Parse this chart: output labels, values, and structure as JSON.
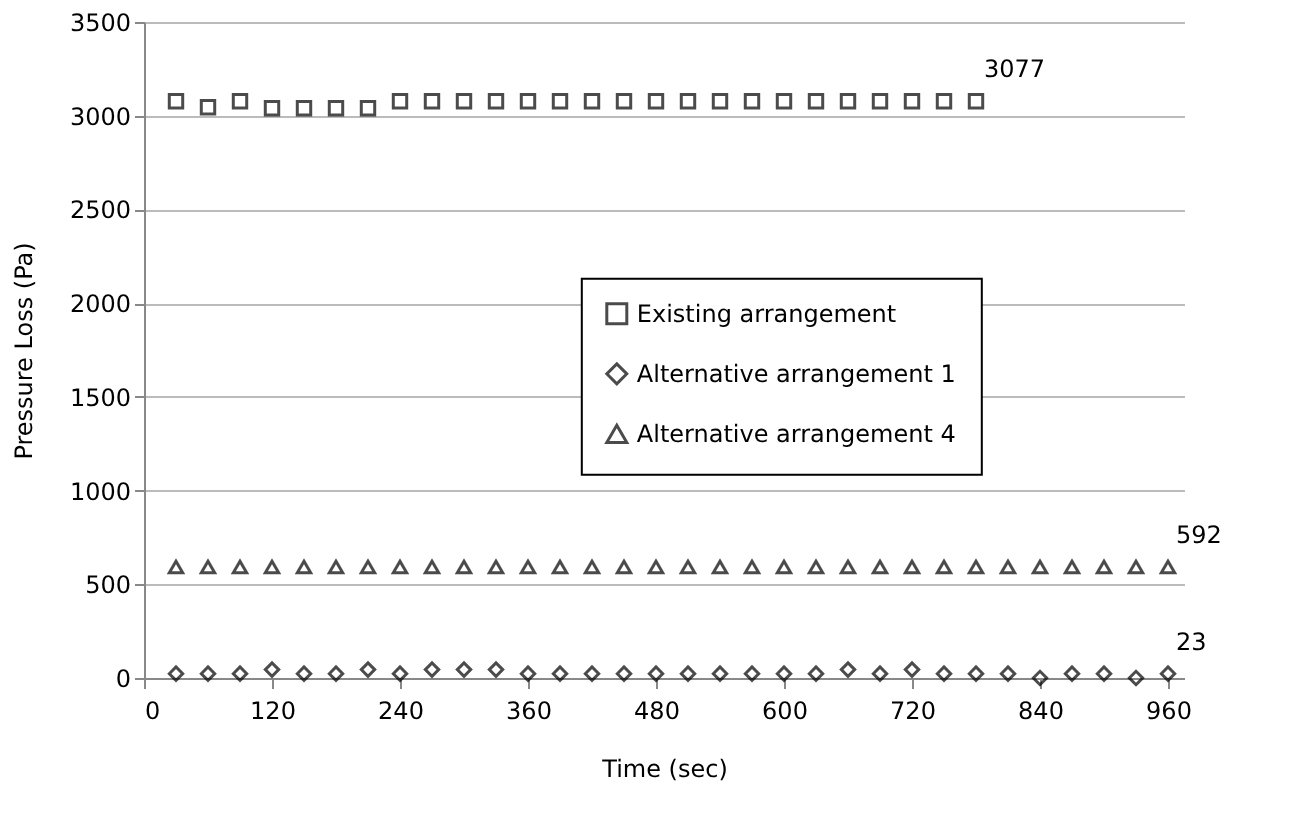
{
  "chart_data": {
    "type": "scatter",
    "xlabel": "Time (sec)",
    "ylabel": "Pressure Loss (Pa)",
    "x": [
      30,
      60,
      90,
      120,
      150,
      180,
      210,
      240,
      270,
      300,
      330,
      360,
      390,
      420,
      450,
      480,
      510,
      540,
      570,
      600,
      630,
      660,
      690,
      720,
      750,
      780,
      810,
      840,
      870,
      900,
      930,
      960
    ],
    "xlim": [
      0,
      975
    ],
    "xticks": [
      0,
      120,
      240,
      360,
      480,
      600,
      720,
      840,
      960
    ],
    "ylim": [
      0,
      3500
    ],
    "yticks": [
      0,
      500,
      1000,
      1500,
      2000,
      2500,
      3000,
      3500
    ],
    "grid": "y",
    "legend": "right",
    "series": [
      {
        "name": "Existing arrangement",
        "color": "#000000",
        "marker": "square",
        "x": [
          30,
          60,
          90,
          120,
          150,
          180,
          210,
          240,
          270,
          300,
          330,
          360,
          390,
          420,
          450,
          480,
          510,
          540,
          570,
          600,
          630,
          660,
          690,
          720,
          750,
          780
        ],
        "values": [
          3077,
          3045,
          3077,
          3040,
          3040,
          3040,
          3040,
          3077,
          3077,
          3077,
          3077,
          3077,
          3077,
          3077,
          3077,
          3077,
          3077,
          3077,
          3077,
          3077,
          3077,
          3077,
          3077,
          3077,
          3077,
          3077
        ],
        "value_labels": [
          null,
          null,
          null,
          null,
          null,
          null,
          null,
          null,
          null,
          null,
          null,
          null,
          null,
          null,
          null,
          null,
          null,
          null,
          null,
          null,
          null,
          null,
          null,
          null,
          null,
          "3077"
        ]
      },
      {
        "name": "Alternative arrangement 1",
        "color": "#000000",
        "marker": "diamond",
        "values": [
          23,
          23,
          23,
          45,
          23,
          23,
          45,
          23,
          45,
          45,
          45,
          23,
          23,
          23,
          23,
          23,
          23,
          23,
          23,
          23,
          23,
          45,
          23,
          45,
          23,
          23,
          23,
          0,
          23,
          23,
          0,
          23
        ],
        "value_labels": [
          null,
          null,
          null,
          null,
          null,
          null,
          null,
          null,
          null,
          null,
          null,
          null,
          null,
          null,
          null,
          null,
          null,
          null,
          null,
          null,
          null,
          null,
          null,
          null,
          null,
          null,
          null,
          null,
          null,
          null,
          null,
          "23"
        ]
      },
      {
        "name": "Alternative arrangement 4",
        "color": "#000000",
        "marker": "triangle",
        "values": [
          592,
          592,
          592,
          592,
          592,
          592,
          592,
          592,
          592,
          592,
          592,
          592,
          592,
          592,
          592,
          592,
          592,
          592,
          592,
          592,
          592,
          592,
          592,
          592,
          592,
          592,
          592,
          592,
          592,
          592,
          592,
          592
        ],
        "value_labels": [
          null,
          null,
          null,
          null,
          null,
          null,
          null,
          null,
          null,
          null,
          null,
          null,
          null,
          null,
          null,
          null,
          null,
          null,
          null,
          null,
          null,
          null,
          null,
          null,
          null,
          null,
          null,
          null,
          null,
          null,
          null,
          "592"
        ]
      }
    ]
  }
}
